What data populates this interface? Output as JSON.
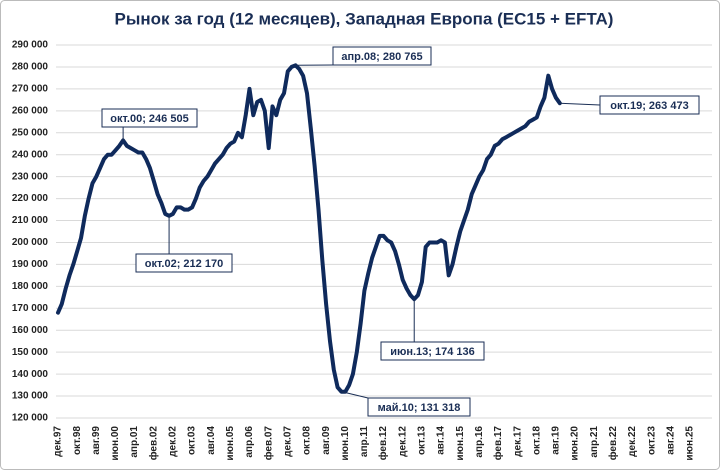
{
  "chart_data": {
    "type": "line",
    "title": "Рынок за год (12 месяцев), Западная Европа (EC15 + EFTA)",
    "categories": [
      "дек.97",
      null,
      null,
      null,
      null,
      "окт.98",
      null,
      null,
      null,
      null,
      "авг.99",
      null,
      null,
      null,
      null,
      "июн.00",
      null,
      null,
      null,
      null,
      "апр.01",
      null,
      null,
      null,
      null,
      "фев.02",
      null,
      null,
      null,
      null,
      "дек.02",
      null,
      null,
      null,
      null,
      "окт.03",
      null,
      null,
      null,
      null,
      "авг.04",
      null,
      null,
      null,
      null,
      "июн.05",
      null,
      null,
      null,
      null,
      "апр.06",
      null,
      null,
      null,
      null,
      "фев.07",
      null,
      null,
      null,
      null,
      "дек.07",
      null,
      null,
      null,
      null,
      "окт.08",
      null,
      null,
      null,
      null,
      "авг.09",
      null,
      null,
      null,
      null,
      "июн.10",
      null,
      null,
      null,
      null,
      "апр.11",
      null,
      null,
      null,
      null,
      "фев.12",
      null,
      null,
      null,
      null,
      "дек.12",
      null,
      null,
      null,
      null,
      "окт.13",
      null,
      null,
      null,
      null,
      "авг.14",
      null,
      null,
      null,
      null,
      "июн.15",
      null,
      null,
      null,
      null,
      "апр.16",
      null,
      null,
      null,
      null,
      "фев.17",
      null,
      null,
      null,
      null,
      "дек.17",
      null,
      null,
      null,
      null,
      "окт.18",
      null,
      null,
      null,
      null,
      "авг.19",
      null,
      null,
      null,
      null,
      "июн.20",
      null,
      null,
      null,
      null,
      "апр.21",
      null,
      null,
      null,
      null,
      "фев.22",
      null,
      null,
      null,
      null,
      "дек.22",
      null,
      null,
      null,
      null,
      "окт.23",
      null,
      null,
      null,
      null,
      "авг.24",
      null,
      null,
      null,
      null,
      "июн.25"
    ],
    "series": [
      {
        "color": "#0f2a5c",
        "values": [
          168000,
          172000,
          179000,
          185000,
          190000,
          196000,
          202000,
          212000,
          220000,
          227000,
          230000,
          234000,
          238000,
          240000,
          240000,
          242000,
          244000,
          246505,
          244000,
          243000,
          242000,
          241000,
          241000,
          238000,
          234000,
          228000,
          222000,
          218000,
          213000,
          212170,
          213000,
          216000,
          216000,
          215000,
          215000,
          216000,
          220000,
          225000,
          228000,
          230000,
          233000,
          236000,
          238000,
          240000,
          243000,
          245000,
          246000,
          250000,
          248000,
          258000,
          270000,
          258000,
          264000,
          265000,
          260000,
          243000,
          262000,
          258000,
          265000,
          268000,
          278000,
          280000,
          280765,
          279000,
          276000,
          268000,
          252000,
          235000,
          215000,
          192000,
          172000,
          155000,
          142000,
          134000,
          132000,
          132000,
          135000,
          140000,
          150000,
          163000,
          178000,
          186000,
          193000,
          198000,
          203000,
          203000,
          201000,
          200000,
          196000,
          190000,
          183000,
          179000,
          176000,
          174136,
          176000,
          182000,
          198000,
          200000,
          200000,
          200000,
          201000,
          200000,
          185000,
          190000,
          198000,
          205000,
          210000,
          215000,
          222000,
          226000,
          230000,
          233000,
          238000,
          240000,
          244000,
          245000,
          247000,
          248000,
          249000,
          250000,
          251000,
          252000,
          253000,
          255000,
          256000,
          257000,
          262000,
          266000,
          276000,
          270000,
          266000,
          263473,
          null,
          null,
          null,
          null,
          null,
          null,
          null,
          null,
          null,
          null,
          null,
          null,
          null,
          null,
          null,
          null,
          null,
          null,
          null,
          null,
          null,
          null,
          null,
          null,
          null,
          null,
          null,
          null,
          null,
          null,
          null,
          null,
          null,
          null
        ]
      }
    ],
    "ylim": [
      120000,
      290000
    ],
    "yticks": [
      {
        "value": 120000,
        "label": "120 000"
      },
      {
        "value": 130000,
        "label": "130 000"
      },
      {
        "value": 140000,
        "label": "140 000"
      },
      {
        "value": 150000,
        "label": "150 000"
      },
      {
        "value": 160000,
        "label": "160 000"
      },
      {
        "value": 170000,
        "label": "170 000"
      },
      {
        "value": 180000,
        "label": "180 000"
      },
      {
        "value": 190000,
        "label": "190 000"
      },
      {
        "value": 200000,
        "label": "200 000"
      },
      {
        "value": 210000,
        "label": "210 000"
      },
      {
        "value": 220000,
        "label": "220 000"
      },
      {
        "value": 230000,
        "label": "230 000"
      },
      {
        "value": 240000,
        "label": "240 000"
      },
      {
        "value": 250000,
        "label": "250 000"
      },
      {
        "value": 260000,
        "label": "260 000"
      },
      {
        "value": 270000,
        "label": "270 000"
      },
      {
        "value": 280000,
        "label": "280 000"
      },
      {
        "value": 290000,
        "label": "290 000"
      }
    ],
    "grid": true,
    "annotations": [
      "окт.00; 246 505",
      "окт.02; 212 170",
      "апр.08; 280 765",
      "май.10; 131 318",
      "июн.13; 174 136",
      "окт.19; 263 473"
    ]
  }
}
